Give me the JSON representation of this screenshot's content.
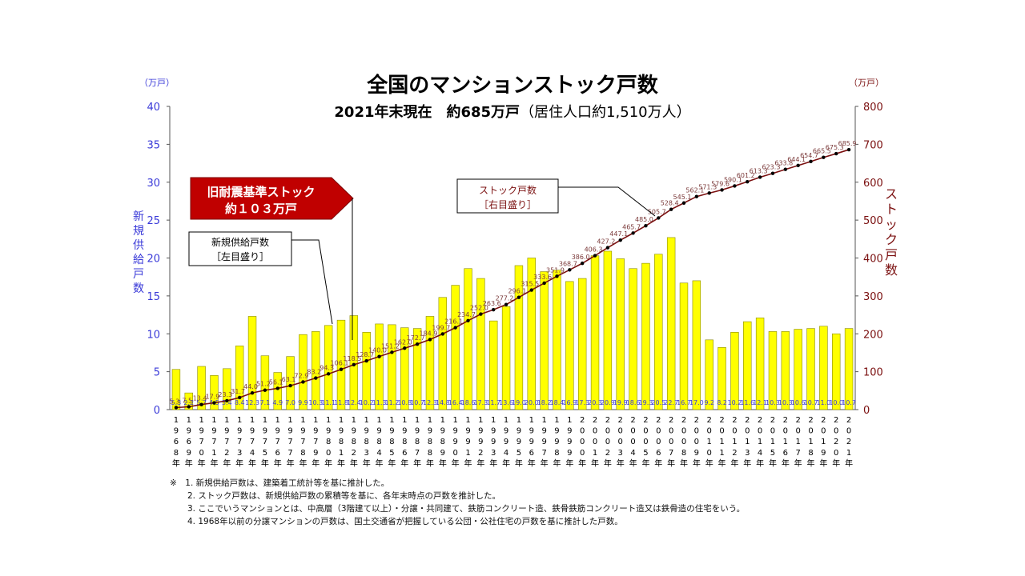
{
  "chart_data": {
    "type": "bar+line",
    "title": "全国のマンションストック戸数",
    "subtitle_main": "2021年末現在　約685万戸",
    "subtitle_sub": "（居住人口約1,510万人）",
    "y_left": {
      "unit": "（万戸）",
      "label": "新規供給戸数",
      "lim": [
        0,
        40
      ],
      "ticks": [
        0,
        5,
        10,
        15,
        20,
        25,
        30,
        35,
        40
      ]
    },
    "y_right": {
      "unit": "（万戸）",
      "label": "ストック戸数",
      "lim": [
        0,
        800
      ],
      "ticks": [
        0,
        100,
        200,
        300,
        400,
        500,
        600,
        700,
        800
      ]
    },
    "categories": [
      "1968年",
      "1969年",
      "1970年",
      "1971年",
      "1972年",
      "1973年",
      "1974年",
      "1975年",
      "1976年",
      "1977年",
      "1978年",
      "1979年",
      "1980年",
      "1981年",
      "1982年",
      "1983年",
      "1984年",
      "1985年",
      "1986年",
      "1987年",
      "1988年",
      "1989年",
      "1990年",
      "1991年",
      "1992年",
      "1993年",
      "1994年",
      "1995年",
      "1996年",
      "1997年",
      "1998年",
      "1999年",
      "2000年",
      "2001年",
      "2002年",
      "2003年",
      "2004年",
      "2005年",
      "2006年",
      "2007年",
      "2008年",
      "2009年",
      "2010年",
      "2011年",
      "2012年",
      "2013年",
      "2014年",
      "2015年",
      "2016年",
      "2017年",
      "2018年",
      "2019年",
      "2020年",
      "2021年"
    ],
    "series": [
      {
        "name": "新規供給戸数",
        "axis": "left",
        "color": "#ffff00",
        "values": [
          5.3,
          2.2,
          5.7,
          4.5,
          5.4,
          8.4,
          12.3,
          7.1,
          4.9,
          7.0,
          9.9,
          10.3,
          11.1,
          11.8,
          12.4,
          10.2,
          11.3,
          11.2,
          10.8,
          10.7,
          12.3,
          14.8,
          16.4,
          18.6,
          17.3,
          11.7,
          13.6,
          19.0,
          20.0,
          18.2,
          18.4,
          16.9,
          17.3,
          20.3,
          20.9,
          19.9,
          18.6,
          19.3,
          20.5,
          22.7,
          16.7,
          17.0,
          9.2,
          8.2,
          10.2,
          11.6,
          12.1,
          10.3,
          10.3,
          10.6,
          10.7,
          11.0,
          10.0,
          10.7
        ],
        "labels": [
          "5.3",
          "2.2",
          "5.7",
          "4.5",
          "5.4",
          "8.4",
          "12.3",
          "7.1",
          "4.9",
          "7.0",
          "9.9",
          "10.3",
          "11.1",
          "11.8",
          "12.4",
          "10.2",
          "11.3",
          "11.2",
          "10.8",
          "10.7",
          "12.3",
          "14.8",
          "16.4",
          "18.6",
          "17.3",
          "11.7",
          "13.6",
          "19.0",
          "20.0",
          "18.2",
          "18.4",
          "16.9",
          "17.3",
          "20.3",
          "20.9",
          "19.9",
          "18.6",
          "19.3",
          "20.5",
          "22.7",
          "16.7",
          "17.0",
          "9.2",
          "8.2",
          "10.2",
          "11.6",
          "12.1",
          "10.3",
          "10.3",
          "10.6",
          "10.7",
          "11.0",
          "10.0",
          "10.7"
        ]
      },
      {
        "name": "ストック戸数",
        "axis": "right",
        "color": "#7b1010",
        "values": [
          5.3,
          7.5,
          13.4,
          17.9,
          23.3,
          31.7,
          44.0,
          51.2,
          56.1,
          63.1,
          72.9,
          83.2,
          94.3,
          106.1,
          118.5,
          128.7,
          140.0,
          151.2,
          162.0,
          172.7,
          184.9,
          199.7,
          216.1,
          234.7,
          252.0,
          263.6,
          277.2,
          296.1,
          315.5,
          333.6,
          351.9,
          368.7,
          386.0,
          406.3,
          427.2,
          447.1,
          465.7,
          485.0,
          505.7,
          528.4,
          545.1,
          562.1,
          571.3,
          579.6,
          590.1,
          601.2,
          613.3,
          623.3,
          633.8,
          644.1,
          654.7,
          665.5,
          675.3,
          685.9
        ],
        "labels": [
          "5.3",
          "7.5",
          "13.4",
          "17.9",
          "23.3",
          "31.7",
          "44.0",
          "51.2",
          "56.1",
          "63.1",
          "72.9",
          "83.2",
          "94.3",
          "106.1",
          "118.5",
          "128.7",
          "140.0",
          "151.2",
          "162.0",
          "172.7",
          "184.9",
          "199.7",
          "216.1",
          "234.7",
          "252.0",
          "263.6",
          "277.2",
          "296.1",
          "315.5",
          "333.6",
          "351.9",
          "368.7",
          "386.0",
          "406.3",
          "427.2",
          "447.1",
          "465.7",
          "485.0",
          "505.7",
          "528.4",
          "545.1",
          "562.1",
          "571.3",
          "579.6",
          "590.1",
          "601.2",
          "613.3",
          "623.3",
          "633.8",
          "644.1",
          "654.7",
          "665.5",
          "675.3",
          "685.9"
        ]
      }
    ],
    "annotations": {
      "old_standard": {
        "line1": "旧耐震基準ストック",
        "line2": "約１０３万戸"
      },
      "new_supply": {
        "line1": "新規供給戸数",
        "line2": "［左目盛り］"
      },
      "stock": {
        "line1": "ストック戸数",
        "line2": "［右目盛り］"
      }
    }
  },
  "notes": [
    "※　1. 新規供給戸数は、建築着工統計等を基に推計した。",
    "2. ストック戸数は、新規供給戸数の累積等を基に、各年末時点の戸数を推計した。",
    "3. ここでいうマンションとは、中高層（3階建て以上）・分譲・共同建て、鉄筋コンクリート造、鉄骨鉄筋コンクリート造又は鉄骨造の住宅をいう。",
    "4. 1968年以前の分譲マンションの戸数は、国土交通省が把握している公団・公社住宅の戸数を基に推計した戸数。"
  ]
}
